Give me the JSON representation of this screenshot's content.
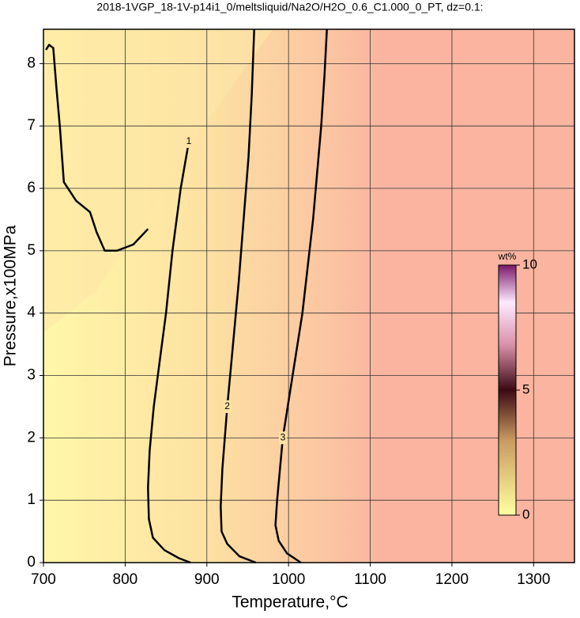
{
  "chart_data": {
    "type": "contour",
    "title": "2018-1VGP_18-1V-p14i1_0/meltsliquid/Na2O/H2O_0.6_C1.000_0_PT, dz=0.1:",
    "x_label": "Temperature,°C",
    "y_label": "Pressure,x100MPa",
    "xlim": [
      700,
      1350
    ],
    "ylim": [
      0,
      8.55
    ],
    "xticks": [
      700,
      800,
      900,
      1000,
      1100,
      1200,
      1300
    ],
    "yticks": [
      0,
      1,
      2,
      3,
      4,
      5,
      6,
      7,
      8
    ],
    "grid": true,
    "contours": [
      {
        "level": 1,
        "x": [
          703,
          707,
          712,
          716,
          720,
          725,
          740,
          757,
          765,
          775,
          790,
          810,
          828,
          null,
          878,
          868,
          858,
          850,
          842,
          835,
          830,
          828,
          829,
          834,
          848,
          866,
          880
        ],
        "y": [
          8.22,
          8.3,
          8.25,
          7.6,
          7.0,
          6.1,
          5.8,
          5.62,
          5.3,
          5.0,
          5.0,
          5.1,
          5.35,
          null,
          6.75,
          6.0,
          5.0,
          4.0,
          3.2,
          2.5,
          1.8,
          1.2,
          0.7,
          0.4,
          0.2,
          0.07,
          0
        ]
      },
      {
        "level": 2,
        "x": [
          958,
          955,
          951,
          945,
          939,
          932,
          925,
          919,
          917,
          918,
          925,
          940,
          960
        ],
        "y": [
          8.55,
          7.5,
          6.5,
          5.5,
          4.5,
          3.5,
          2.5,
          1.5,
          0.9,
          0.5,
          0.3,
          0.1,
          0
        ]
      },
      {
        "level": 3,
        "x": [
          1047,
          1044,
          1040,
          1030,
          1017,
          1005,
          993,
          986,
          984,
          988,
          998,
          1015
        ],
        "y": [
          8.55,
          7.8,
          7.0,
          5.5,
          4.0,
          3.0,
          2.0,
          1.0,
          0.6,
          0.35,
          0.15,
          0
        ]
      }
    ],
    "colorbar": {
      "label": "wt%",
      "lim": [
        0,
        10
      ],
      "ticks": [
        0,
        5,
        10
      ]
    }
  }
}
